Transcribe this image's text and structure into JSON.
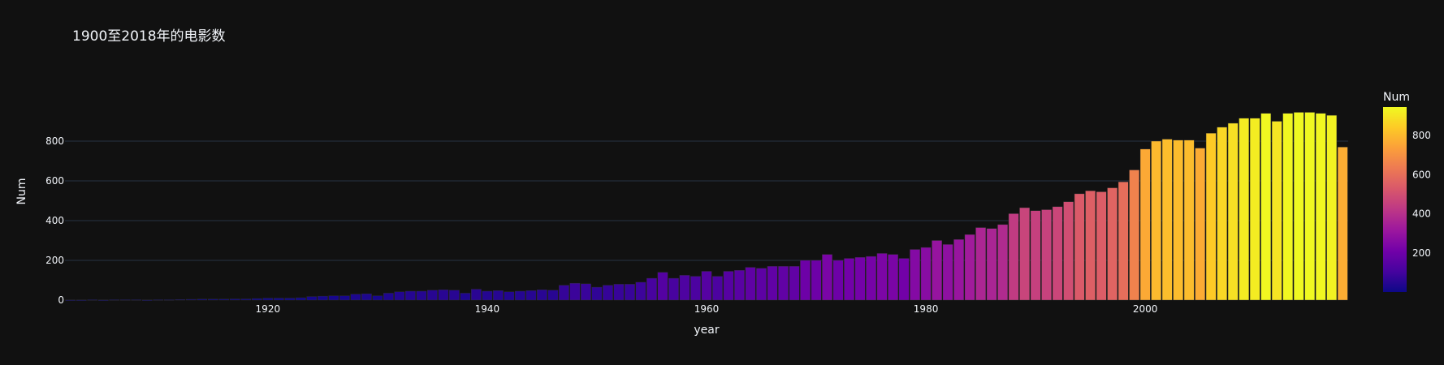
{
  "chart_data": {
    "type": "bar",
    "title": "1900至2018年的电影数",
    "xlabel": "year",
    "ylabel": "Num",
    "x": [
      1902,
      1903,
      1904,
      1905,
      1906,
      1907,
      1908,
      1909,
      1910,
      1911,
      1912,
      1913,
      1914,
      1915,
      1916,
      1917,
      1918,
      1919,
      1920,
      1921,
      1922,
      1923,
      1924,
      1925,
      1926,
      1927,
      1928,
      1929,
      1930,
      1931,
      1932,
      1933,
      1934,
      1935,
      1936,
      1937,
      1938,
      1939,
      1940,
      1941,
      1942,
      1943,
      1944,
      1945,
      1946,
      1947,
      1948,
      1949,
      1950,
      1951,
      1952,
      1953,
      1954,
      1955,
      1956,
      1957,
      1958,
      1959,
      1960,
      1961,
      1962,
      1963,
      1964,
      1965,
      1966,
      1967,
      1968,
      1969,
      1970,
      1971,
      1972,
      1973,
      1974,
      1975,
      1976,
      1977,
      1978,
      1979,
      1980,
      1981,
      1982,
      1983,
      1984,
      1985,
      1986,
      1987,
      1988,
      1989,
      1990,
      1991,
      1992,
      1993,
      1994,
      1995,
      1996,
      1997,
      1998,
      1999,
      2000,
      2001,
      2002,
      2003,
      2004,
      2005,
      2006,
      2007,
      2008,
      2009,
      2010,
      2011,
      2012,
      2013,
      2014,
      2015,
      2016,
      2017,
      2018
    ],
    "values": [
      1,
      1,
      2,
      1,
      2,
      2,
      2,
      1,
      2,
      2,
      3,
      4,
      5,
      5,
      5,
      6,
      6,
      8,
      10,
      10,
      10,
      12,
      18,
      20,
      22,
      22,
      30,
      32,
      22,
      35,
      42,
      45,
      45,
      50,
      52,
      50,
      35,
      55,
      45,
      48,
      42,
      45,
      48,
      52,
      50,
      75,
      85,
      82,
      65,
      75,
      80,
      80,
      90,
      110,
      140,
      110,
      125,
      120,
      145,
      120,
      145,
      150,
      165,
      160,
      170,
      170,
      170,
      200,
      200,
      230,
      200,
      210,
      215,
      220,
      235,
      230,
      210,
      255,
      265,
      300,
      280,
      305,
      330,
      365,
      360,
      380,
      435,
      465,
      450,
      455,
      470,
      495,
      535,
      550,
      545,
      565,
      595,
      655,
      760,
      800,
      810,
      805,
      805,
      765,
      840,
      870,
      890,
      915,
      915,
      940,
      900,
      940,
      945,
      945,
      940,
      930,
      770
    ],
    "ylim": [
      0,
      1000
    ],
    "y_ticks": [
      0,
      200,
      400,
      600,
      800
    ],
    "x_ticks": [
      1920,
      1940,
      1960,
      1980,
      2000
    ],
    "grid": true,
    "colorbar": {
      "title": "Num",
      "ticks": [
        200,
        400,
        600,
        800
      ],
      "range": [
        1,
        945
      ],
      "colorscale": [
        "#0d0887",
        "#46039f",
        "#7201a8",
        "#9c179e",
        "#bd3786",
        "#d8576b",
        "#ed7953",
        "#fb9f3a",
        "#fdca26",
        "#f0f921"
      ]
    },
    "colors": {
      "background": "#111111",
      "grid": "#283442",
      "text": "#f2f5fa"
    }
  }
}
